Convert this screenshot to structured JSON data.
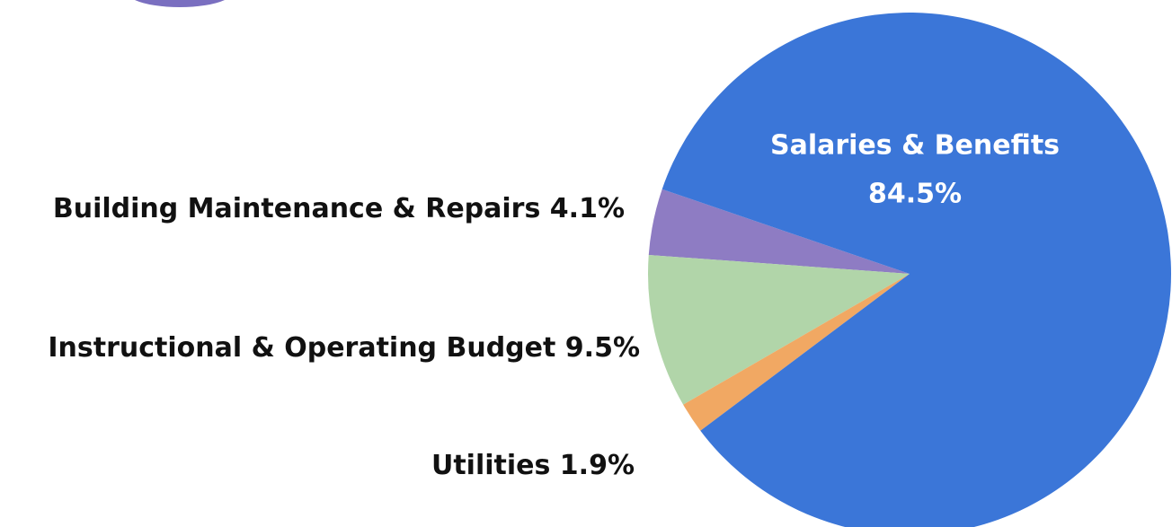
{
  "chart_data": {
    "type": "pie",
    "categories": [
      "Building Maintenance & Repairs",
      "Instructional & Operating Budget",
      "Utilities",
      "Salaries & Benefits"
    ],
    "values": [
      4.1,
      9.5,
      1.9,
      84.5
    ],
    "value_labels": [
      "4.1%",
      "9.5%",
      "1.9%",
      "84.5%"
    ],
    "colors": [
      "#8e7cc3",
      "#b1d5a9",
      "#f1a863",
      "#3b76d8"
    ]
  }
}
